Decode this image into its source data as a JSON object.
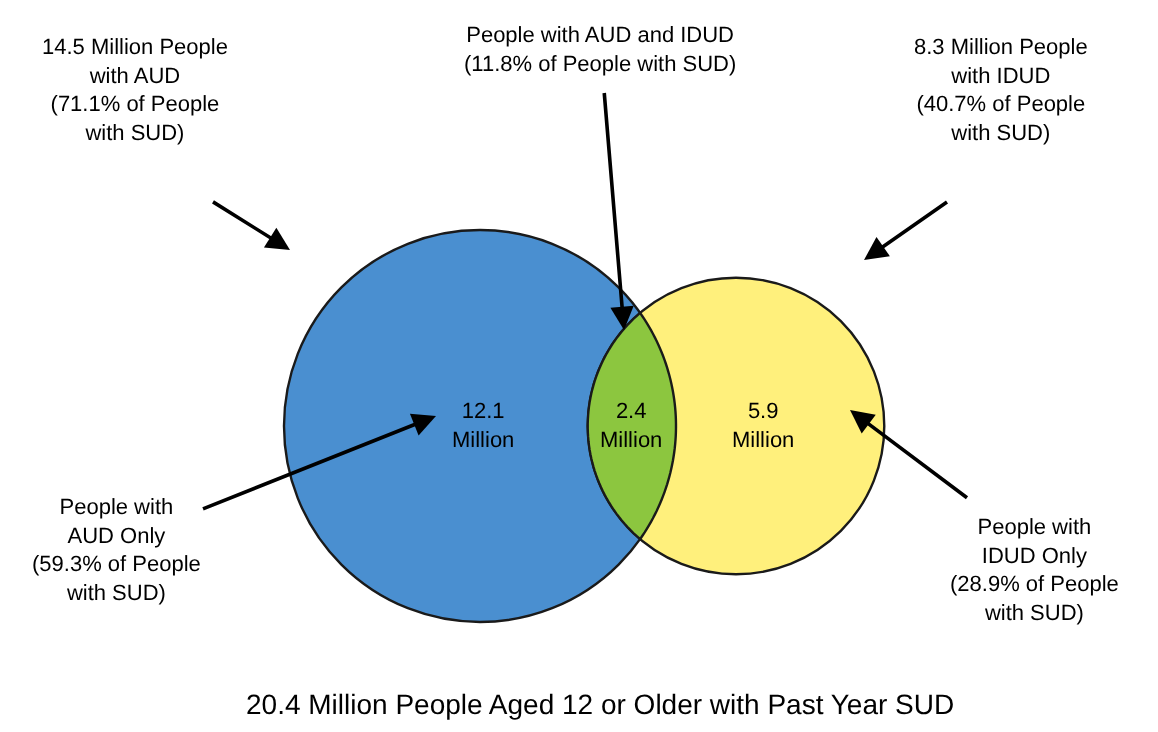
{
  "chart_data": {
    "type": "other",
    "title": "20.4 Million People Aged 12 or Older with Past Year SUD",
    "values": [
      12.1,
      2.4,
      5.9
    ],
    "value_labels": [
      "12.1\nMillion",
      "2.4\nMillion",
      "5.9\nMillion"
    ],
    "colors": [
      "#4a8fd0",
      "#8cc63f",
      "#fff07c"
    ],
    "annotations": [
      "14.5 Million People\nwith AUD\n(71.1% of People\nwith SUD)",
      "People with AUD and IDUD\n(11.8% of People with SUD)",
      "8.3 Million People\nwith IDUD\n(40.7% of People\nwith SUD)",
      "People with\nAUD Only\n(59.3% of People\nwith SUD)",
      "People with\nIDUD Only\n(28.9% of People\nwith SUD)"
    ]
  }
}
